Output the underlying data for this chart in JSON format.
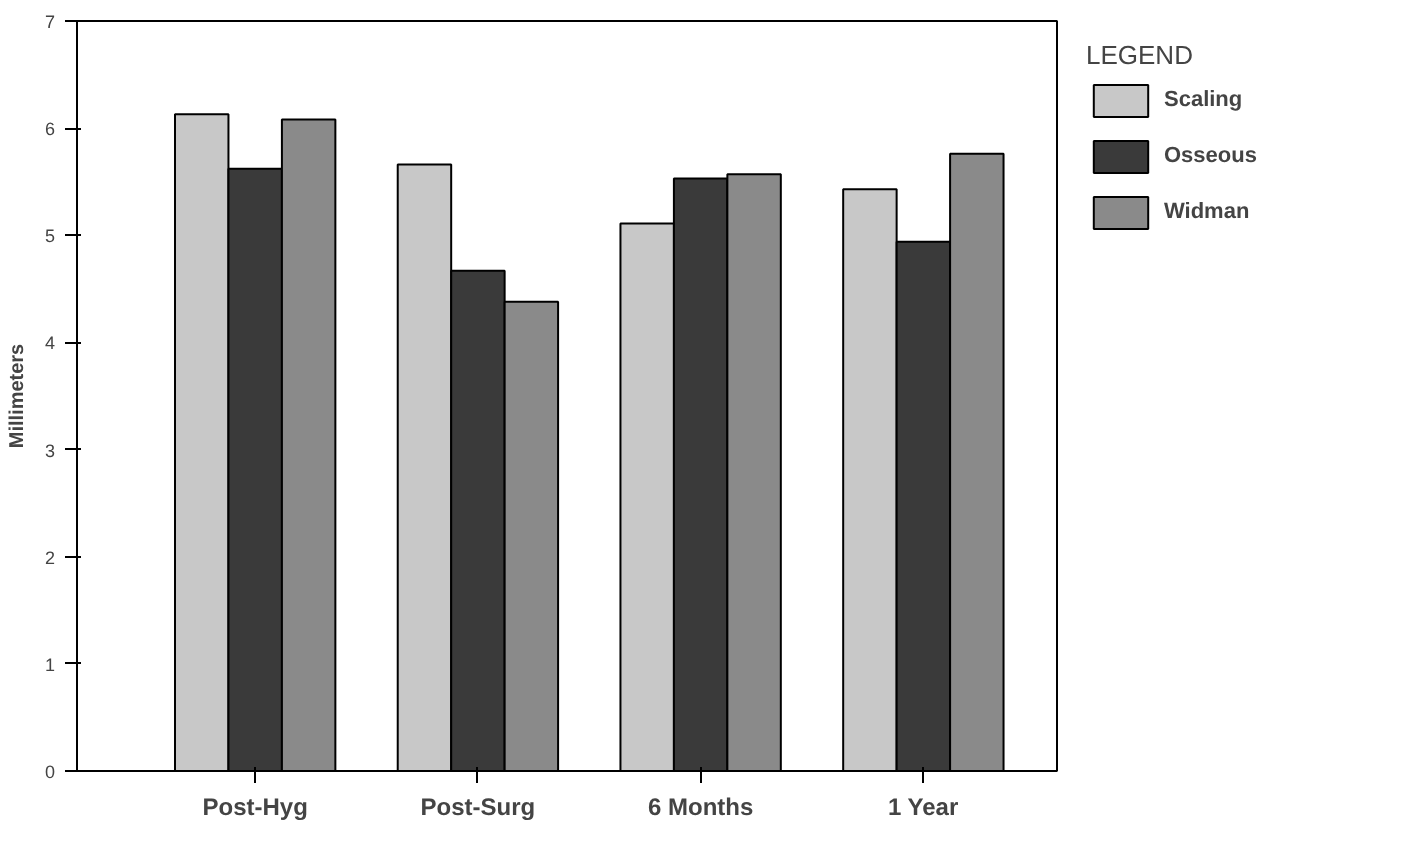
{
  "chart_data": {
    "type": "bar",
    "ylabel": "Millimeters",
    "legend_title": "LEGEND",
    "categories": [
      "Post-Hyg",
      "Post-Surg",
      "6 Months",
      "1 Year"
    ],
    "series": [
      {
        "name": "Scaling",
        "color": "#c8c8c8",
        "values": [
          6.13,
          5.66,
          5.11,
          5.43
        ]
      },
      {
        "name": "Osseous",
        "color": "#3a3a3a",
        "values": [
          5.62,
          4.67,
          5.53,
          4.94
        ]
      },
      {
        "name": "Widman",
        "color": "#8a8a8a",
        "values": [
          6.08,
          4.38,
          5.57,
          5.76
        ]
      }
    ],
    "ylim": [
      0,
      7
    ],
    "yticks": [
      0,
      1,
      2,
      3,
      4,
      5,
      6,
      7
    ],
    "grid": false,
    "legend": "right"
  }
}
